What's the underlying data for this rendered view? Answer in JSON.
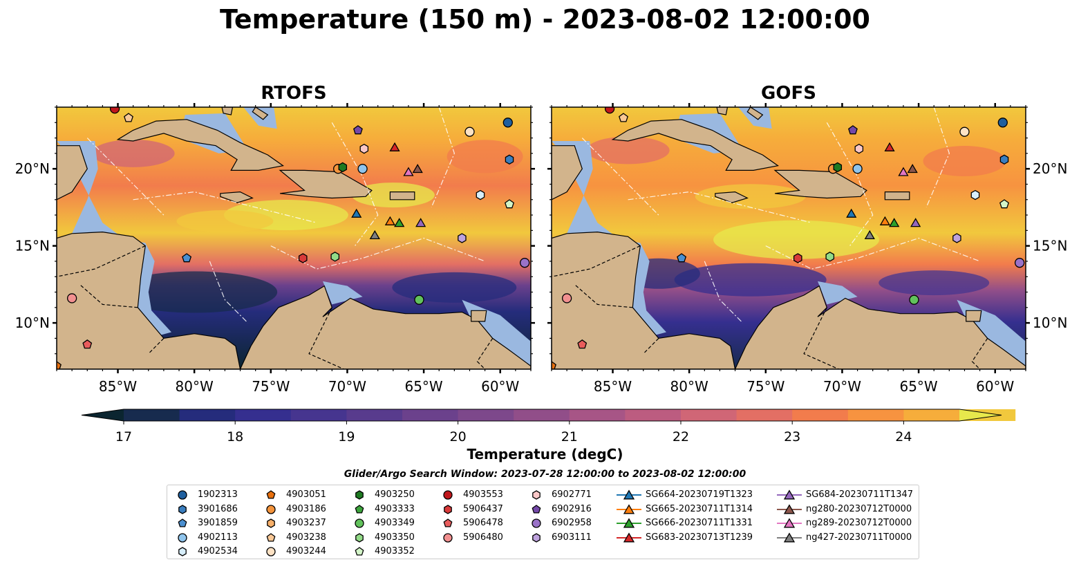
{
  "title": "Temperature (150 m) - 2023-08-02 12:00:00",
  "panels": [
    {
      "title": "RTOFS"
    },
    {
      "title": "GOFS"
    }
  ],
  "lon_ticks": [
    "85°W",
    "80°W",
    "75°W",
    "70°W",
    "65°W",
    "60°W"
  ],
  "lat_ticks": [
    "20°N",
    "15°N",
    "10°N"
  ],
  "extent": {
    "lon": [
      -89,
      -58
    ],
    "lat": [
      7,
      24
    ]
  },
  "colorbar": {
    "label": "Temperature (degC)",
    "ticks": [
      "17",
      "18",
      "19",
      "20",
      "21",
      "22",
      "23",
      "24"
    ],
    "range": [
      16.75,
      24.5
    ],
    "step": 0.5,
    "colors": [
      "#0b2530",
      "#172b4e",
      "#252c7c",
      "#352f8f",
      "#46358f",
      "#583b8d",
      "#6b418c",
      "#7d488b",
      "#914e89",
      "#a75586",
      "#bc5c80",
      "#d06676",
      "#e36f64",
      "#f27c4c",
      "#f79340",
      "#f6ad3b",
      "#f1c83d",
      "#e7e84c"
    ]
  },
  "legend_title": "Glider/Argo Search Window: 2023-07-28 12:00:00 to 2023-08-02 12:00:00",
  "legend": [
    [
      {
        "label": "1902313",
        "marker": "circle",
        "color": "#1f5f9e"
      },
      {
        "label": "3901686",
        "marker": "hexagon",
        "color": "#3a7ebf"
      },
      {
        "label": "3901859",
        "marker": "pentagon",
        "color": "#4a8fd0"
      },
      {
        "label": "4902113",
        "marker": "circle",
        "color": "#8fc4ec"
      },
      {
        "label": "4902534",
        "marker": "hexagon",
        "color": "#d7eefb"
      }
    ],
    [
      {
        "label": "4903051",
        "marker": "pentagon",
        "color": "#e8700f"
      },
      {
        "label": "4903186",
        "marker": "circle",
        "color": "#f4943c"
      },
      {
        "label": "4903237",
        "marker": "hexagon",
        "color": "#f7b06a"
      },
      {
        "label": "4903238",
        "marker": "pentagon",
        "color": "#f9c896"
      },
      {
        "label": "4903244",
        "marker": "circle",
        "color": "#fde2c4"
      }
    ],
    [
      {
        "label": "4903250",
        "marker": "hexagon",
        "color": "#1e7a22"
      },
      {
        "label": "4903333",
        "marker": "pentagon",
        "color": "#3ca43c"
      },
      {
        "label": "4903349",
        "marker": "circle",
        "color": "#62c25c"
      },
      {
        "label": "4903350",
        "marker": "hexagon",
        "color": "#93db88"
      },
      {
        "label": "4903352",
        "marker": "pentagon",
        "color": "#d3f5c8"
      }
    ],
    [
      {
        "label": "4903553",
        "marker": "circle",
        "color": "#c0171c"
      },
      {
        "label": "5906437",
        "marker": "hexagon",
        "color": "#d93a3a"
      },
      {
        "label": "5906478",
        "marker": "pentagon",
        "color": "#e85c5c"
      },
      {
        "label": "5906480",
        "marker": "circle",
        "color": "#f29090"
      }
    ],
    [
      {
        "label": "6902771",
        "marker": "hexagon",
        "color": "#fbc8c8"
      },
      {
        "label": "6902916",
        "marker": "pentagon",
        "color": "#7448a8"
      },
      {
        "label": "6902958",
        "marker": "circle",
        "color": "#9a72c8"
      },
      {
        "label": "6903111",
        "marker": "hexagon",
        "color": "#bea2de"
      }
    ],
    [
      {
        "label": "SG664-20230719T1323",
        "marker": "triangle",
        "color": "#1f77b4"
      },
      {
        "label": "SG665-20230711T1314",
        "marker": "triangle",
        "color": "#ff7f0e"
      },
      {
        "label": "SG666-20230711T1331",
        "marker": "triangle",
        "color": "#2ca02c"
      },
      {
        "label": "SG683-20230713T1239",
        "marker": "triangle",
        "color": "#d62728"
      }
    ],
    [
      {
        "label": "SG684-20230711T1347",
        "marker": "triangle",
        "color": "#9467bd"
      },
      {
        "label": "ng280-20230712T0000",
        "marker": "triangle",
        "color": "#8c564b"
      },
      {
        "label": "ng289-20230712T0000",
        "marker": "triangle",
        "color": "#e377c2"
      },
      {
        "label": "ng427-20230711T0000",
        "marker": "triangle",
        "color": "#7f7f7f"
      }
    ]
  ],
  "map_markers": [
    {
      "label": "1902313",
      "lon": -59.5,
      "lat": 23.0
    },
    {
      "label": "3901686",
      "lon": -59.4,
      "lat": 20.6
    },
    {
      "label": "4902113",
      "lon": -69.0,
      "lat": 20.0
    },
    {
      "label": "4902534",
      "lon": -61.3,
      "lat": 18.3
    },
    {
      "label": "4903186",
      "lon": -70.6,
      "lat": 20.0
    },
    {
      "label": "4903244",
      "lon": -62.0,
      "lat": 22.4
    },
    {
      "label": "4903250",
      "lon": -70.3,
      "lat": 20.1
    },
    {
      "label": "4903349",
      "lon": -65.3,
      "lat": 11.5
    },
    {
      "label": "4903350",
      "lon": -70.8,
      "lat": 14.3
    },
    {
      "label": "4903352",
      "lon": -59.4,
      "lat": 17.7
    },
    {
      "label": "4903553",
      "lon": -85.2,
      "lat": 23.9
    },
    {
      "label": "5906437",
      "lon": -72.9,
      "lat": 14.2
    },
    {
      "label": "5906478",
      "lon": -87.0,
      "lat": 8.6
    },
    {
      "label": "5906480",
      "lon": -88.0,
      "lat": 11.6
    },
    {
      "label": "6902771",
      "lon": -68.9,
      "lat": 21.3
    },
    {
      "label": "6902916",
      "lon": -69.3,
      "lat": 22.5
    },
    {
      "label": "6902958",
      "lon": -58.4,
      "lat": 13.9
    },
    {
      "label": "6903111",
      "lon": -62.5,
      "lat": 15.5
    },
    {
      "label": "3901859",
      "lon": -80.5,
      "lat": 14.2
    },
    {
      "label": "4903051",
      "lon": -89.0,
      "lat": 7.2
    },
    {
      "label": "4903238",
      "lon": -84.3,
      "lat": 23.3
    },
    {
      "label": "SG664-20230719T1323",
      "lon": -69.4,
      "lat": 17.1
    },
    {
      "label": "SG665-20230711T1314",
      "lon": -67.2,
      "lat": 16.6
    },
    {
      "label": "SG666-20230711T1331",
      "lon": -66.6,
      "lat": 16.5
    },
    {
      "label": "SG683-20230713T1239",
      "lon": -66.9,
      "lat": 21.4
    },
    {
      "label": "SG684-20230711T1347",
      "lon": -65.2,
      "lat": 16.5
    },
    {
      "label": "ng280-20230712T0000",
      "lon": -65.4,
      "lat": 20.0
    },
    {
      "label": "ng289-20230712T0000",
      "lon": -66.0,
      "lat": 19.8
    },
    {
      "label": "ng427-20230711T0000",
      "lon": -68.2,
      "lat": 15.7
    }
  ],
  "colors": {
    "land": "#d2b48c",
    "shelf": "#9ab8e0",
    "land_edge": "#000000"
  }
}
